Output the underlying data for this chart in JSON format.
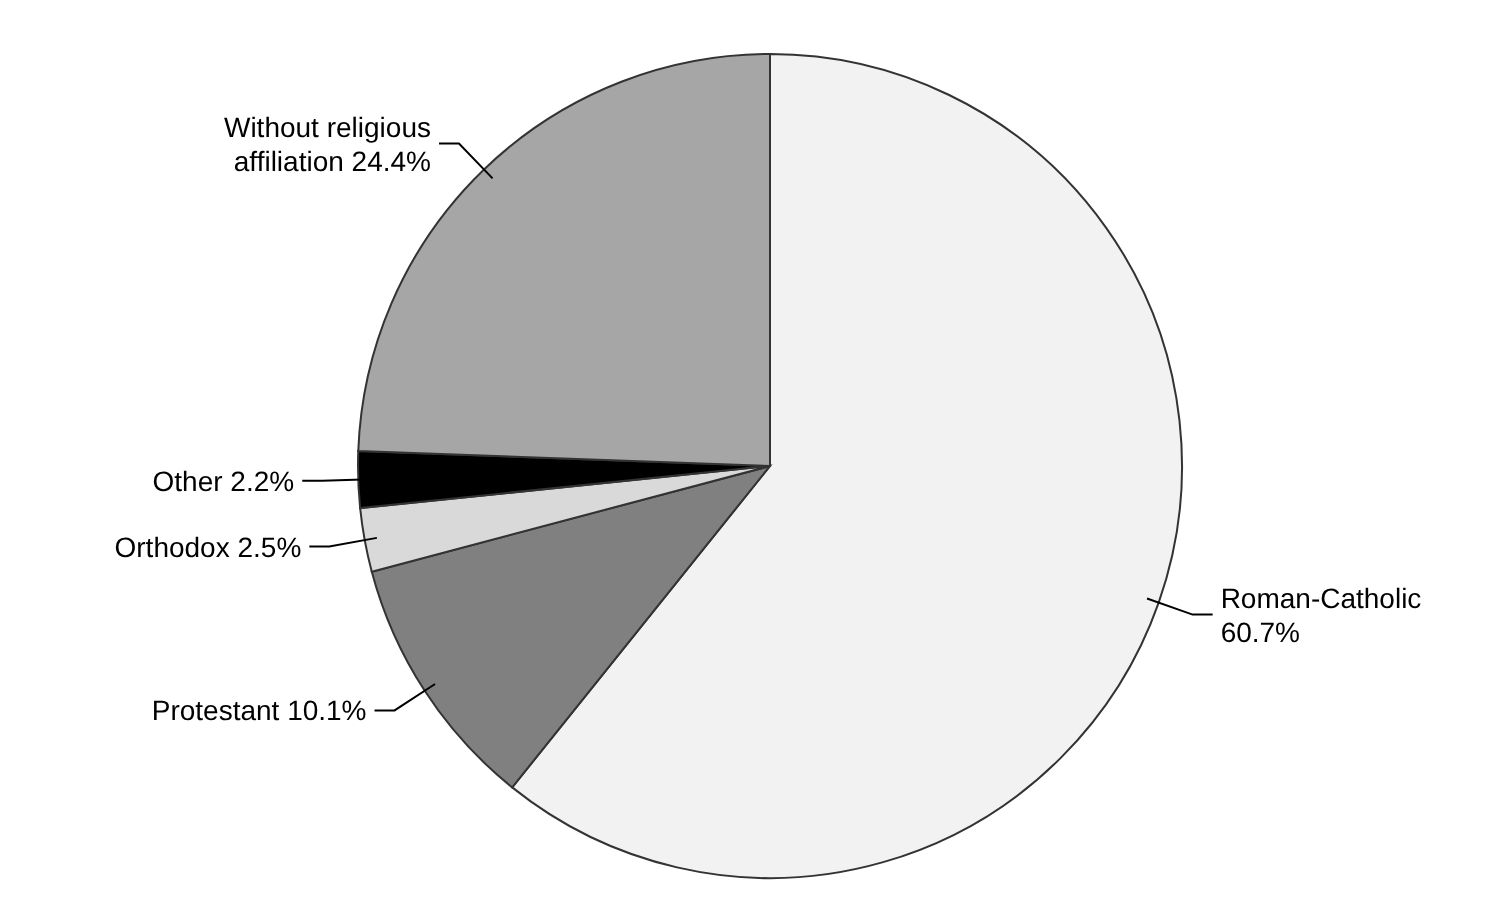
{
  "chart_data": {
    "type": "pie",
    "categories": [
      "Roman-Catholic",
      "Protestant",
      "Orthodox",
      "Other",
      "Without religious affiliation"
    ],
    "values": [
      60.7,
      10.1,
      2.5,
      2.2,
      24.4
    ],
    "value_labels": [
      "60.7%",
      "10.1%",
      "2.5%",
      "2.2%",
      "24.4%"
    ],
    "colors": [
      "#f2f2f2",
      "#808080",
      "#d9d9d9",
      "#000000",
      "#a6a6a6"
    ],
    "legend": false
  }
}
